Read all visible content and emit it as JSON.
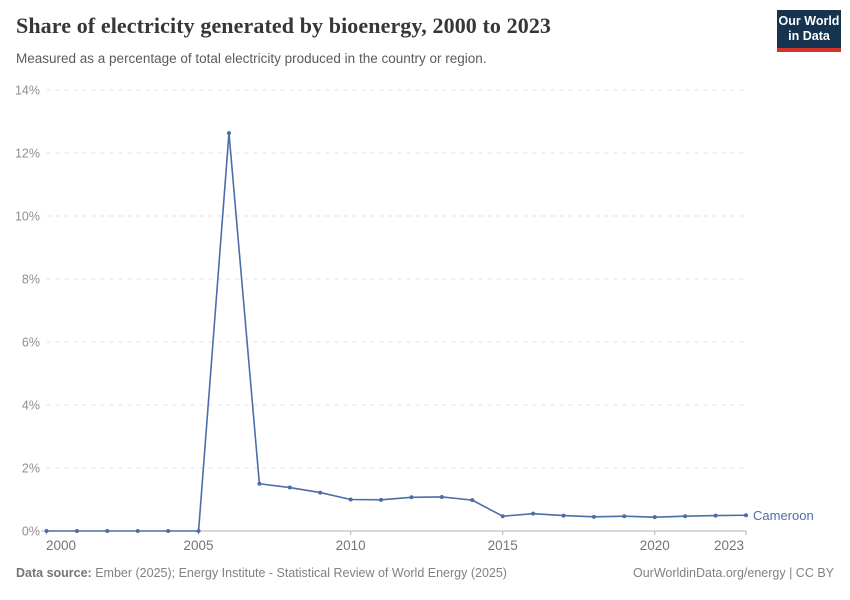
{
  "header": {
    "title": "Share of electricity generated by bioenergy, 2000 to 2023",
    "subtitle": "Measured as a percentage of total electricity produced in the country or region.",
    "logo": {
      "line1": "Our World",
      "line2": "in Data",
      "bg": "#16334f",
      "accent": "#d0342c"
    }
  },
  "chart_data": {
    "type": "line",
    "title": "Share of electricity generated by bioenergy, 2000 to 2023",
    "xlabel": "",
    "ylabel": "",
    "x": [
      2000,
      2001,
      2002,
      2003,
      2004,
      2005,
      2006,
      2007,
      2008,
      2009,
      2010,
      2011,
      2012,
      2013,
      2014,
      2015,
      2016,
      2017,
      2018,
      2019,
      2020,
      2021,
      2022,
      2023
    ],
    "series": [
      {
        "name": "Cameroon",
        "color": "#4c6ea8",
        "values": [
          0,
          0,
          0,
          0,
          0,
          0,
          12.63,
          1.5,
          1.38,
          1.22,
          1.0,
          0.99,
          1.07,
          1.08,
          0.98,
          0.47,
          0.55,
          0.49,
          0.45,
          0.47,
          0.44,
          0.47,
          0.49,
          0.5
        ]
      }
    ],
    "ylim": [
      0,
      14
    ],
    "y_ticks": [
      0,
      2,
      4,
      6,
      8,
      10,
      12,
      14
    ],
    "y_tick_labels": [
      "0%",
      "2%",
      "4%",
      "6%",
      "8%",
      "10%",
      "12%",
      "14%"
    ],
    "x_ticks": [
      2000,
      2005,
      2010,
      2015,
      2020,
      2023
    ],
    "x_tick_labels": [
      "2000",
      "2005",
      "2010",
      "2015",
      "2020",
      "2023"
    ],
    "grid": "horizontal-dashed",
    "legend": "line-end-label"
  },
  "colors": {
    "grid": "#e2e2e2",
    "axis": "#b3b3b3",
    "y_tick_text": "#8f8f8f",
    "x_tick_text": "#757575"
  },
  "footer": {
    "source_label": "Data source:",
    "source_text": "Ember (2025); Energy Institute - Statistical Review of World Energy (2025)",
    "attribution": "OurWorldinData.org/energy | CC BY"
  }
}
